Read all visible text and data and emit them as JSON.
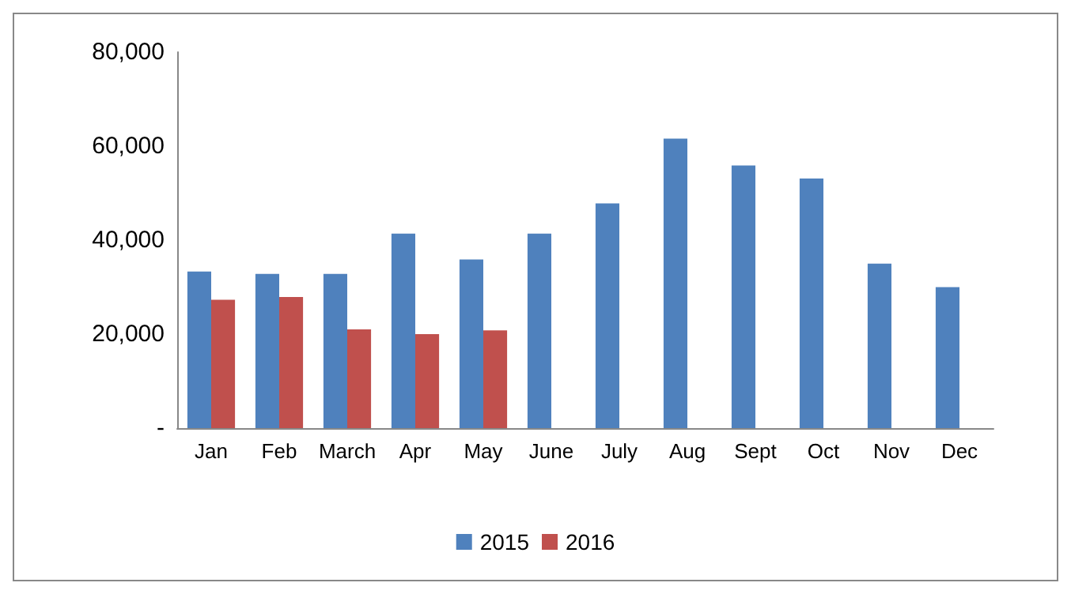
{
  "chart_data": {
    "type": "bar",
    "categories": [
      "Jan",
      "Feb",
      "March",
      "Apr",
      "May",
      "June",
      "July",
      "Aug",
      "Sept",
      "Oct",
      "Nov",
      "Dec"
    ],
    "series": [
      {
        "name": "2015",
        "color": "#4f81bd",
        "values": [
          33300,
          32800,
          32800,
          41400,
          35900,
          41400,
          47800,
          61600,
          55900,
          53100,
          35000,
          30000
        ]
      },
      {
        "name": "2016",
        "color": "#c0504d",
        "values": [
          27300,
          27900,
          21000,
          20000,
          20800,
          null,
          null,
          null,
          null,
          null,
          null,
          null
        ]
      }
    ],
    "ylim": [
      0,
      80000
    ],
    "yticks": [
      {
        "value": 0,
        "label": "-"
      },
      {
        "value": 20000,
        "label": "20,000"
      },
      {
        "value": 40000,
        "label": "40,000"
      },
      {
        "value": 60000,
        "label": "60,000"
      },
      {
        "value": 80000,
        "label": "80,000"
      }
    ],
    "grid": false,
    "legend": "bottom"
  }
}
